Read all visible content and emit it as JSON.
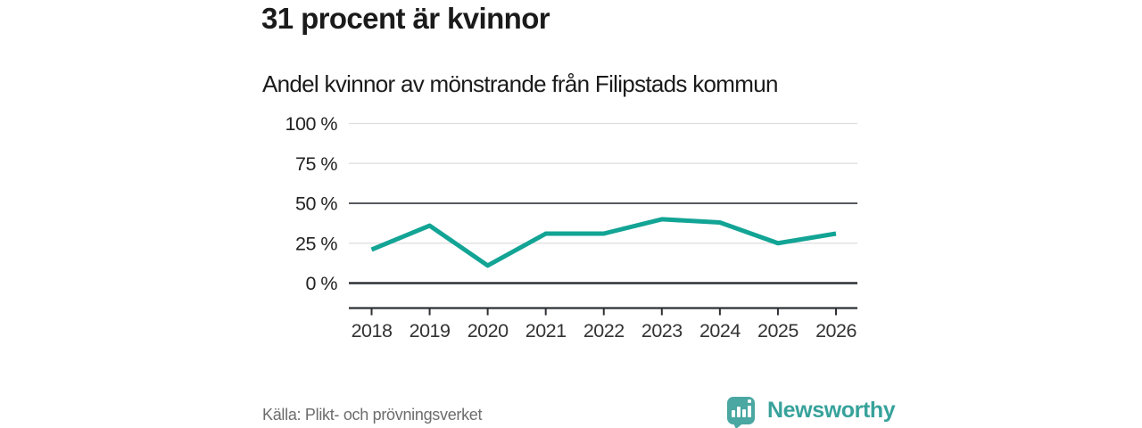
{
  "header": {
    "title": "31 procent är kvinnor",
    "subtitle": "Andel kvinnor av mönstrande från Filipstads kommun"
  },
  "chart_data": {
    "type": "line",
    "title": "31 procent är kvinnor",
    "subtitle": "Andel kvinnor av mönstrande från Filipstads kommun",
    "x": [
      2018,
      2019,
      2020,
      2021,
      2022,
      2023,
      2024,
      2025,
      2026
    ],
    "series": [
      {
        "name": "Andel kvinnor av mönstrande",
        "values": [
          21,
          36,
          11,
          31,
          31,
          40,
          38,
          25,
          31
        ]
      }
    ],
    "unit": "%",
    "ylim": [
      0,
      100
    ],
    "yticks": [
      {
        "value": 100,
        "label": "100 %"
      },
      {
        "value": 75,
        "label": "75 %"
      },
      {
        "value": 50,
        "label": "50 %"
      },
      {
        "value": 25,
        "label": "25 %"
      },
      {
        "value": 0,
        "label": "0 %"
      }
    ],
    "grid": true,
    "legend": "none",
    "line_color": "#12a495"
  },
  "footer": {
    "source": "Källa: Plikt- och prövningsverket",
    "brand": "Newsworthy"
  },
  "colors": {
    "accent": "#12a495",
    "logo_badge": "#4aa7a2",
    "logo_text": "#37a29b",
    "text_dark": "#1b1b1b",
    "text_muted": "#6d6d6d",
    "axis_label": "#333333",
    "ytick_label": "#222222",
    "grid_light": "#dedede",
    "grid_mid": "#56595e",
    "axis_dark": "#2d3035"
  }
}
